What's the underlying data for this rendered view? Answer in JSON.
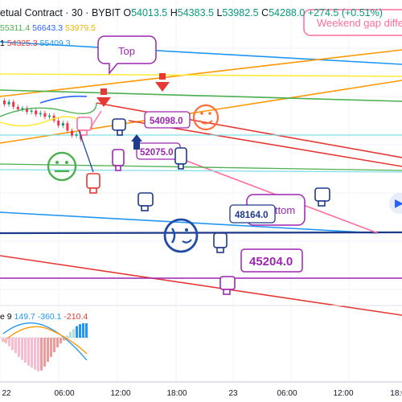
{
  "header": {
    "title": "etual Contract · 30 · BYBIT",
    "ohlc": [
      {
        "k": "O",
        "v": "54013.5"
      },
      {
        "k": "H",
        "v": "54383.5"
      },
      {
        "k": "L",
        "v": "53982.5"
      },
      {
        "k": "C",
        "v": "54288.0"
      }
    ],
    "change": "+274.5 (+0.51%)"
  },
  "ma_row_1": [
    "55311.4",
    "56643.3",
    "53979.5"
  ],
  "ma_row_2_prefix": "1",
  "ma_row_2": [
    "54325.3",
    "55409.3"
  ],
  "macd_row": {
    "prefix": "e 9",
    "values": [
      "149.7",
      "-360.1",
      "-210.4"
    ]
  },
  "annotations": {
    "weekend_gap": "Weekend gap diffe",
    "top": "Top",
    "bottom": "Bottom"
  },
  "colors": {
    "up": "#089981",
    "down": "#f23645",
    "pink": "#ff6f9c",
    "purple": "#9c27b0",
    "blue": "#2962ff",
    "navy": "#1e3a8a",
    "orange": "#ff9800",
    "green": "#4caf50"
  },
  "chart_data": {
    "type": "line",
    "symbol": "Perpetual Contract BYBIT",
    "interval": "30",
    "x_ticks": [
      "22",
      "06:00",
      "12:00",
      "18:00",
      "23",
      "06:00",
      "12:00",
      "18:0"
    ],
    "price_labels": [
      "54098.0",
      "52075.0",
      "48164.0",
      "45204.0"
    ],
    "trendlines": [
      {
        "color": "#2196f3"
      },
      {
        "color": "#ff9800"
      },
      {
        "color": "#ff9800"
      },
      {
        "color": "#4caf50"
      },
      {
        "color": "#e53935"
      },
      {
        "color": "#e53935"
      },
      {
        "color": "#2196f3"
      },
      {
        "color": "#1e3a8a"
      },
      {
        "color": "#ff6f9c"
      },
      {
        "color": "#9c27b0"
      },
      {
        "color": "#e53935"
      },
      {
        "color": "#ffeb3b"
      }
    ],
    "candles": [
      {
        "o": 54300,
        "c": 54150
      },
      {
        "o": 54150,
        "c": 54250
      },
      {
        "o": 54250,
        "c": 54050
      },
      {
        "o": 54050,
        "c": 53950
      },
      {
        "o": 53950,
        "c": 54000
      },
      {
        "o": 54000,
        "c": 53850
      },
      {
        "o": 53850,
        "c": 53900
      },
      {
        "o": 53900,
        "c": 53750
      },
      {
        "o": 53750,
        "c": 53800
      },
      {
        "o": 53800,
        "c": 53650
      },
      {
        "o": 53650,
        "c": 53700
      },
      {
        "o": 53700,
        "c": 53500
      },
      {
        "o": 53500,
        "c": 53300
      },
      {
        "o": 53300,
        "c": 53400
      },
      {
        "o": 53400,
        "c": 53100
      },
      {
        "o": 53100,
        "c": 52900
      },
      {
        "o": 52900,
        "c": 52950
      },
      {
        "o": 52950,
        "c": 52750
      }
    ],
    "macd_histogram": [
      -40,
      -60,
      -90,
      -130,
      -160,
      -200,
      -230,
      -260,
      -290,
      -310,
      -330,
      -350,
      -340,
      -300,
      -250,
      -200,
      -150,
      -100,
      -60,
      -30,
      20,
      60,
      90,
      120,
      140,
      150,
      149.7
    ]
  }
}
